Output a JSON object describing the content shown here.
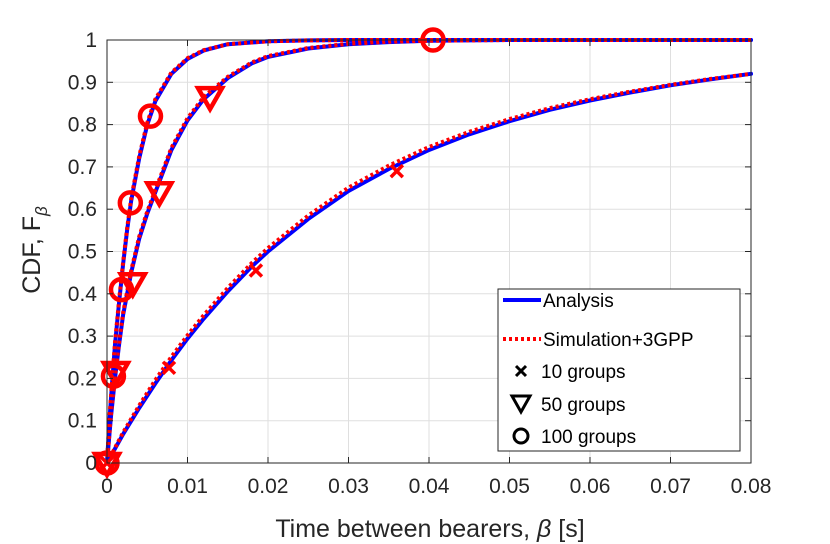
{
  "chart_data": {
    "type": "line",
    "title": "",
    "xlabel_prefix": "Time between bearers, ",
    "xlabel_symbol": "β",
    "xlabel_suffix": " [s]",
    "ylabel_prefix": "CDF, F",
    "ylabel_subscript": "β",
    "xlim": [
      0,
      0.08
    ],
    "ylim": [
      0,
      1
    ],
    "x_ticks": [
      0,
      0.01,
      0.02,
      0.03,
      0.04,
      0.05,
      0.06,
      0.07,
      0.08
    ],
    "x_tick_labels": [
      "0",
      "0.01",
      "0.02",
      "0.03",
      "0.04",
      "0.05",
      "0.06",
      "0.07",
      "0.08"
    ],
    "y_ticks": [
      0,
      0.1,
      0.2,
      0.3,
      0.4,
      0.5,
      0.6,
      0.7,
      0.8,
      0.9,
      1
    ],
    "y_tick_labels": [
      "0",
      "0.1",
      "0.2",
      "0.3",
      "0.4",
      "0.5",
      "0.6",
      "0.7",
      "0.8",
      "0.9",
      "1"
    ],
    "grid": true,
    "legend_position": "bottom-right",
    "legend": [
      {
        "label": "Analysis",
        "kind": "line",
        "color": "#0000ff",
        "dash": "solid"
      },
      {
        "label": "Simulation+3GPP",
        "kind": "line",
        "color": "#ff0000",
        "dash": "dotted"
      },
      {
        "label": "10 groups",
        "kind": "marker",
        "marker": "x"
      },
      {
        "label": "50 groups",
        "kind": "marker",
        "marker": "triangle-down"
      },
      {
        "label": "100 groups",
        "kind": "marker",
        "marker": "circle"
      }
    ],
    "groups": [
      {
        "name": "10 groups",
        "marker": "x",
        "analysis_x": [
          0,
          0.002,
          0.004,
          0.006,
          0.008,
          0.01,
          0.012,
          0.015,
          0.018,
          0.02,
          0.025,
          0.03,
          0.035,
          0.04,
          0.045,
          0.05,
          0.055,
          0.06,
          0.065,
          0.07,
          0.075,
          0.08
        ],
        "analysis_y": [
          0,
          0.068,
          0.13,
          0.188,
          0.243,
          0.294,
          0.341,
          0.406,
          0.465,
          0.5,
          0.577,
          0.643,
          0.695,
          0.74,
          0.777,
          0.808,
          0.835,
          0.857,
          0.876,
          0.893,
          0.907,
          0.92
        ],
        "simulation_x": [
          0,
          0.002,
          0.004,
          0.006,
          0.008,
          0.01,
          0.012,
          0.015,
          0.018,
          0.02,
          0.025,
          0.03,
          0.035,
          0.04,
          0.045,
          0.05,
          0.055,
          0.06,
          0.065,
          0.07,
          0.075,
          0.08
        ],
        "simulation_y": [
          0,
          0.072,
          0.136,
          0.196,
          0.251,
          0.302,
          0.349,
          0.414,
          0.473,
          0.508,
          0.585,
          0.651,
          0.703,
          0.747,
          0.783,
          0.813,
          0.839,
          0.86,
          0.878,
          0.894,
          0.908,
          0.92
        ],
        "marker_points": [
          {
            "x": 0,
            "y": 0.0
          },
          {
            "x": 0.0077,
            "y": 0.225
          },
          {
            "x": 0.0185,
            "y": 0.455
          },
          {
            "x": 0.036,
            "y": 0.69
          }
        ]
      },
      {
        "name": "50 groups",
        "marker": "triangle-down",
        "analysis_x": [
          0,
          0.0005,
          0.001,
          0.0015,
          0.002,
          0.003,
          0.004,
          0.005,
          0.006,
          0.008,
          0.01,
          0.012,
          0.015,
          0.018,
          0.02,
          0.025,
          0.03,
          0.035,
          0.04,
          0.05,
          0.06,
          0.08
        ],
        "analysis_y": [
          0,
          0.11,
          0.2,
          0.28,
          0.35,
          0.45,
          0.53,
          0.59,
          0.64,
          0.74,
          0.81,
          0.86,
          0.91,
          0.945,
          0.96,
          0.98,
          0.99,
          0.995,
          0.998,
          1.0,
          1.0,
          1.0
        ],
        "simulation_x": [
          0,
          0.0005,
          0.001,
          0.0015,
          0.002,
          0.003,
          0.004,
          0.005,
          0.006,
          0.008,
          0.01,
          0.012,
          0.015,
          0.018,
          0.02,
          0.025,
          0.03,
          0.035,
          0.04,
          0.05,
          0.06,
          0.08
        ],
        "simulation_y": [
          0,
          0.115,
          0.205,
          0.285,
          0.355,
          0.455,
          0.535,
          0.595,
          0.645,
          0.745,
          0.815,
          0.865,
          0.913,
          0.947,
          0.962,
          0.981,
          0.991,
          0.996,
          0.998,
          1.0,
          1.0,
          1.0
        ],
        "marker_points": [
          {
            "x": 0,
            "y": 0.0
          },
          {
            "x": 0.0011,
            "y": 0.215
          },
          {
            "x": 0.0032,
            "y": 0.425
          },
          {
            "x": 0.0065,
            "y": 0.64
          },
          {
            "x": 0.0128,
            "y": 0.865
          }
        ]
      },
      {
        "name": "100 groups",
        "marker": "circle",
        "analysis_x": [
          0,
          0.0003,
          0.0006,
          0.001,
          0.0015,
          0.002,
          0.0025,
          0.003,
          0.004,
          0.005,
          0.006,
          0.008,
          0.01,
          0.012,
          0.015,
          0.02,
          0.025,
          0.03,
          0.04,
          0.05,
          0.08
        ],
        "analysis_y": [
          0,
          0.1,
          0.18,
          0.28,
          0.38,
          0.47,
          0.55,
          0.62,
          0.72,
          0.8,
          0.855,
          0.92,
          0.955,
          0.975,
          0.99,
          0.997,
          0.999,
          1.0,
          1.0,
          1.0,
          1.0
        ],
        "simulation_x": [
          0,
          0.0003,
          0.0006,
          0.001,
          0.0015,
          0.002,
          0.0025,
          0.003,
          0.004,
          0.005,
          0.006,
          0.008,
          0.01,
          0.012,
          0.015,
          0.02,
          0.025,
          0.03,
          0.04,
          0.05,
          0.08
        ],
        "simulation_y": [
          0,
          0.105,
          0.185,
          0.285,
          0.385,
          0.475,
          0.555,
          0.625,
          0.725,
          0.805,
          0.86,
          0.923,
          0.957,
          0.976,
          0.99,
          0.997,
          0.999,
          1.0,
          1.0,
          1.0,
          1.0
        ],
        "marker_points": [
          {
            "x": 0,
            "y": 0.0
          },
          {
            "x": 0.0008,
            "y": 0.205
          },
          {
            "x": 0.0018,
            "y": 0.41
          },
          {
            "x": 0.0029,
            "y": 0.615
          },
          {
            "x": 0.0054,
            "y": 0.82
          },
          {
            "x": 0.0405,
            "y": 1.0
          }
        ]
      }
    ]
  },
  "colors": {
    "analysis": "#0000ff",
    "simulation": "#ff0000",
    "axis": "#262626",
    "grid": "#dfdfdf"
  }
}
